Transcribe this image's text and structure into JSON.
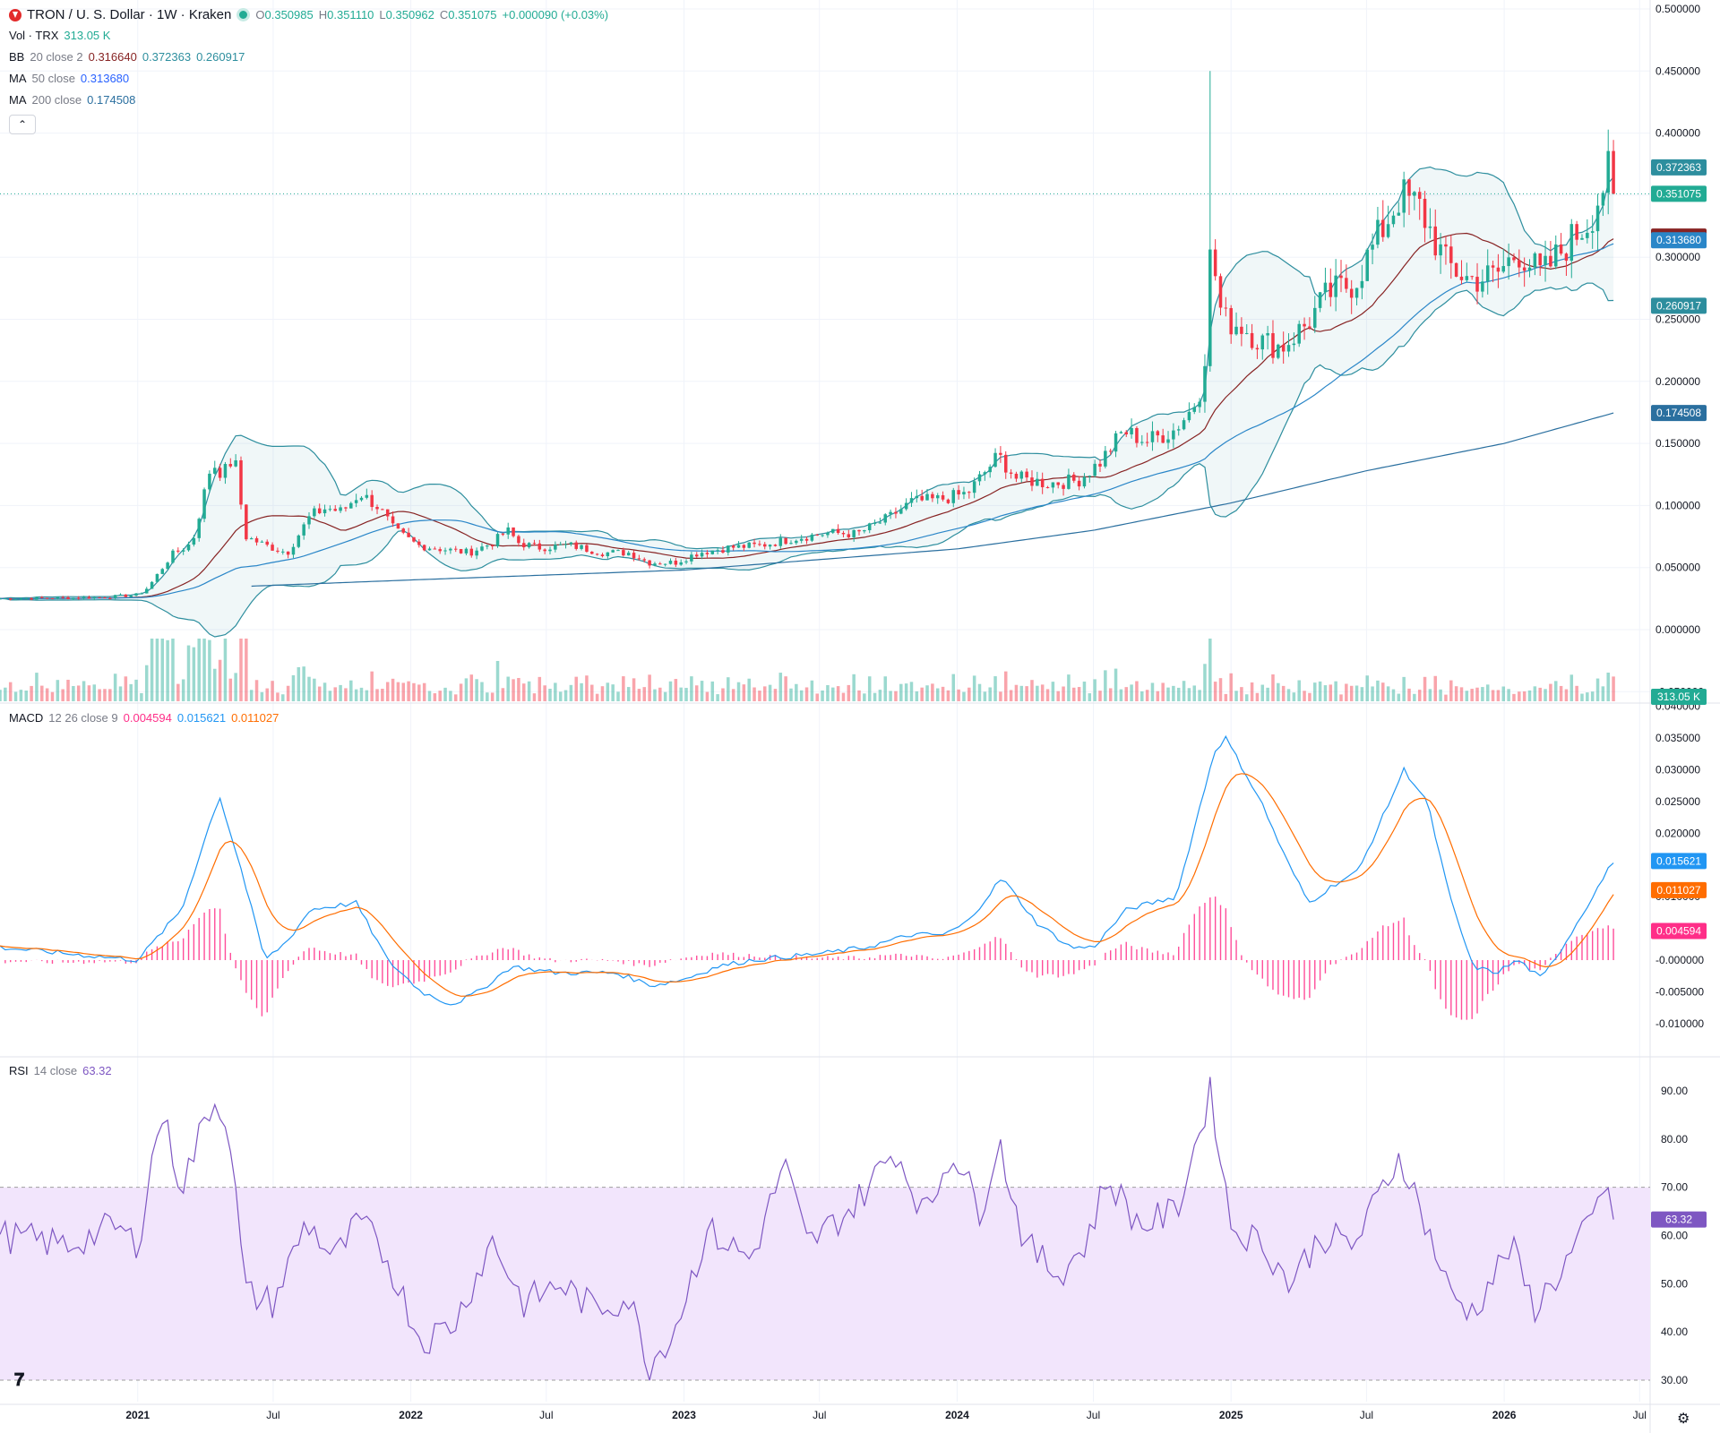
{
  "header": {
    "symbol": "TRON / U. S. Dollar · 1W · Kraken",
    "ohlc": [
      {
        "label": "O",
        "value": "0.350985"
      },
      {
        "label": "H",
        "value": "0.351110"
      },
      {
        "label": "L",
        "value": "0.350962"
      },
      {
        "label": "C",
        "value": "0.351075"
      }
    ],
    "change": "+0.000090 (+0.03%)"
  },
  "indicators": {
    "vol": {
      "name": "Vol · TRX",
      "value": "313.05 K"
    },
    "bb": {
      "name": "BB",
      "params": "20 close 2",
      "basis": "0.316640",
      "upper": "0.372363",
      "lower": "0.260917"
    },
    "ma50": {
      "name": "MA",
      "params": "50 close",
      "value": "0.313680"
    },
    "ma200": {
      "name": "MA",
      "params": "200 close",
      "value": "0.174508"
    },
    "macd": {
      "name": "MACD",
      "params": "12 26 close 9",
      "hist": "0.004594",
      "macd": "0.015621",
      "signal": "0.011027"
    },
    "rsi": {
      "name": "RSI",
      "params": "14 close",
      "value": "63.32"
    }
  },
  "colors": {
    "up": "#22ab94",
    "down": "#f23645",
    "bb_basis": "#872323",
    "bb_band": "#2d8e9e",
    "ma50": "#2962ff",
    "ma200": "#2a6f9f",
    "macd": "#2196f3",
    "signal": "#ff6d00",
    "hist": "#ff2e88",
    "rsi": "#7e57c2",
    "rsi_band": "#f2e5fc"
  },
  "price_axis": [
    "0.500000",
    "0.450000",
    "0.400000",
    "0.350000",
    "0.300000",
    "0.250000",
    "0.200000",
    "0.150000",
    "0.100000",
    "0.050000",
    "0.000000",
    "-0.050000"
  ],
  "price_labels": [
    {
      "value": "0.372363",
      "kind": "bb-upper"
    },
    {
      "value": "0.351075",
      "kind": "last"
    },
    {
      "value": "0.316640",
      "kind": "bb-basis"
    },
    {
      "value": "0.313680",
      "kind": "ma50"
    },
    {
      "value": "0.260917",
      "kind": "bb-lower"
    },
    {
      "value": "0.174508",
      "kind": "ma200"
    },
    {
      "value": "313.05 K",
      "kind": "volume"
    }
  ],
  "macd_axis": [
    "0.040000",
    "0.035000",
    "0.030000",
    "0.025000",
    "0.020000",
    "0.015000",
    "0.010000",
    "0.005000",
    "-0.000000",
    "-0.005000",
    "-0.010000"
  ],
  "macd_labels": [
    {
      "value": "0.015621",
      "kind": "macd"
    },
    {
      "value": "0.011027",
      "kind": "signal"
    },
    {
      "value": "0.004594",
      "kind": "hist"
    }
  ],
  "rsi_axis": [
    "90.00",
    "80.00",
    "70.00",
    "60.00",
    "50.00",
    "40.00",
    "30.00"
  ],
  "rsi_label": "63.32",
  "time_axis": [
    "2021",
    "Jul",
    "2022",
    "Jul",
    "2023",
    "Jul",
    "2024",
    "Jul",
    "2025",
    "Jul",
    "2026",
    "Jul"
  ],
  "chart_data": {
    "type": "candlestick",
    "title": "TRON / U. S. Dollar · 1W · Kraken",
    "x": {
      "start": "2020-07-01",
      "end": "2026-07-15",
      "interval": "1W"
    },
    "price_range": [
      -0.05,
      0.5
    ],
    "price_keypoints": [
      [
        "2020-07-01",
        0.025
      ],
      [
        "2020-11-15",
        0.026
      ],
      [
        "2021-01-01",
        0.028
      ],
      [
        "2021-01-15",
        0.034
      ],
      [
        "2021-02-15",
        0.06
      ],
      [
        "2021-03-15",
        0.07
      ],
      [
        "2021-04-10",
        0.135
      ],
      [
        "2021-04-25",
        0.125
      ],
      [
        "2021-05-10",
        0.14
      ],
      [
        "2021-05-25",
        0.075
      ],
      [
        "2021-06-20",
        0.068
      ],
      [
        "2021-07-20",
        0.062
      ],
      [
        "2021-08-20",
        0.092
      ],
      [
        "2021-09-10",
        0.098
      ],
      [
        "2021-10-01",
        0.095
      ],
      [
        "2021-10-25",
        0.11
      ],
      [
        "2021-11-20",
        0.098
      ],
      [
        "2021-12-10",
        0.08
      ],
      [
        "2022-01-10",
        0.068
      ],
      [
        "2022-02-10",
        0.065
      ],
      [
        "2022-03-20",
        0.062
      ],
      [
        "2022-04-20",
        0.07
      ],
      [
        "2022-05-10",
        0.08
      ],
      [
        "2022-05-25",
        0.07
      ],
      [
        "2022-06-20",
        0.066
      ],
      [
        "2022-08-01",
        0.068
      ],
      [
        "2022-09-15",
        0.062
      ],
      [
        "2022-10-20",
        0.062
      ],
      [
        "2022-11-15",
        0.054
      ],
      [
        "2022-12-20",
        0.054
      ],
      [
        "2023-01-20",
        0.062
      ],
      [
        "2023-03-01",
        0.066
      ],
      [
        "2023-04-15",
        0.068
      ],
      [
        "2023-06-01",
        0.074
      ],
      [
        "2023-07-15",
        0.078
      ],
      [
        "2023-08-20",
        0.077
      ],
      [
        "2023-10-01",
        0.09
      ],
      [
        "2023-11-01",
        0.103
      ],
      [
        "2023-12-10",
        0.105
      ],
      [
        "2024-01-15",
        0.11
      ],
      [
        "2024-02-25",
        0.14
      ],
      [
        "2024-03-20",
        0.122
      ],
      [
        "2024-05-01",
        0.118
      ],
      [
        "2024-06-10",
        0.12
      ],
      [
        "2024-07-10",
        0.135
      ],
      [
        "2024-08-10",
        0.16
      ],
      [
        "2024-09-10",
        0.152
      ],
      [
        "2024-10-15",
        0.16
      ],
      [
        "2024-11-10",
        0.178
      ],
      [
        "2024-11-25",
        0.2
      ],
      [
        "2024-12-05",
        0.31
      ],
      [
        "2024-12-20",
        0.25
      ],
      [
        "2025-01-15",
        0.245
      ],
      [
        "2025-02-10",
        0.232
      ],
      [
        "2025-03-10",
        0.228
      ],
      [
        "2025-04-10",
        0.245
      ],
      [
        "2025-05-10",
        0.27
      ],
      [
        "2025-06-15",
        0.28
      ],
      [
        "2025-07-20",
        0.32
      ],
      [
        "2025-08-15",
        0.35
      ],
      [
        "2025-09-10",
        0.34
      ],
      [
        "2025-10-15",
        0.295
      ],
      [
        "2025-11-15",
        0.282
      ],
      [
        "2025-12-20",
        0.285
      ],
      [
        "2026-01-20",
        0.305
      ],
      [
        "2026-02-20",
        0.285
      ],
      [
        "2026-03-25",
        0.31
      ],
      [
        "2026-04-25",
        0.33
      ],
      [
        "2026-05-20",
        0.368
      ],
      [
        "2026-05-27",
        0.351075
      ]
    ],
    "spike": {
      "date": "2024-12-05",
      "high": 0.45
    },
    "ma200_keypoints": [
      [
        "2021-06-01",
        0.035
      ],
      [
        "2022-01-01",
        0.04
      ],
      [
        "2023-01-01",
        0.048
      ],
      [
        "2024-01-01",
        0.065
      ],
      [
        "2024-07-01",
        0.08
      ],
      [
        "2025-01-01",
        0.102
      ],
      [
        "2025-07-01",
        0.128
      ],
      [
        "2026-01-01",
        0.15
      ],
      [
        "2026-05-27",
        0.174508
      ]
    ],
    "macd_range": [
      -0.012,
      0.04
    ],
    "macd_keypoints": [
      [
        "2020-07-01",
        0.002
      ],
      [
        "2021-01-01",
        0.0
      ],
      [
        "2021-03-01",
        0.008
      ],
      [
        "2021-04-20",
        0.026
      ],
      [
        "2021-05-20",
        0.014
      ],
      [
        "2021-06-20",
        0.0
      ],
      [
        "2021-07-20",
        0.003
      ],
      [
        "2021-08-20",
        0.008
      ],
      [
        "2021-10-20",
        0.009
      ],
      [
        "2021-12-01",
        0.0
      ],
      [
        "2022-01-15",
        -0.005
      ],
      [
        "2022-02-25",
        -0.007
      ],
      [
        "2022-04-01",
        -0.005
      ],
      [
        "2022-05-15",
        -0.001
      ],
      [
        "2022-07-15",
        -0.002
      ],
      [
        "2022-10-01",
        -0.002
      ],
      [
        "2022-11-20",
        -0.004
      ],
      [
        "2023-01-01",
        -0.003
      ],
      [
        "2023-02-15",
        -0.001
      ],
      [
        "2023-04-01",
        0.0
      ],
      [
        "2023-07-01",
        0.001
      ],
      [
        "2023-09-01",
        0.002
      ],
      [
        "2023-11-01",
        0.004
      ],
      [
        "2023-12-15",
        0.004
      ],
      [
        "2024-01-15",
        0.006
      ],
      [
        "2024-03-01",
        0.013
      ],
      [
        "2024-04-15",
        0.006
      ],
      [
        "2024-06-01",
        0.002
      ],
      [
        "2024-07-01",
        0.002
      ],
      [
        "2024-08-15",
        0.008
      ],
      [
        "2024-10-20",
        0.01
      ],
      [
        "2024-12-10",
        0.033
      ],
      [
        "2024-12-25",
        0.035
      ],
      [
        "2025-02-10",
        0.025
      ],
      [
        "2025-03-15",
        0.016
      ],
      [
        "2025-04-15",
        0.009
      ],
      [
        "2025-05-20",
        0.012
      ],
      [
        "2025-06-20",
        0.014
      ],
      [
        "2025-08-20",
        0.03
      ],
      [
        "2025-09-20",
        0.025
      ],
      [
        "2025-10-20",
        0.01
      ],
      [
        "2025-11-20",
        -0.001
      ],
      [
        "2025-12-20",
        -0.002
      ],
      [
        "2026-01-20",
        0.0
      ],
      [
        "2026-02-20",
        -0.003
      ],
      [
        "2026-03-25",
        0.003
      ],
      [
        "2026-05-27",
        0.015621
      ]
    ],
    "rsi_range": [
      28,
      92
    ],
    "rsi_keypoints": [
      [
        "2020-07-01",
        60
      ],
      [
        "2020-10-01",
        58
      ],
      [
        "2020-12-01",
        62
      ],
      [
        "2021-01-01",
        58
      ],
      [
        "2021-02-01",
        86
      ],
      [
        "2021-03-01",
        70
      ],
      [
        "2021-04-10",
        88
      ],
      [
        "2021-05-01",
        85
      ],
      [
        "2021-05-25",
        48
      ],
      [
        "2021-07-01",
        46
      ],
      [
        "2021-08-15",
        63
      ],
      [
        "2021-09-20",
        55
      ],
      [
        "2021-10-25",
        63
      ],
      [
        "2021-12-01",
        55
      ],
      [
        "2022-01-15",
        38
      ],
      [
        "2022-03-01",
        42
      ],
      [
        "2022-04-20",
        59
      ],
      [
        "2022-06-01",
        46
      ],
      [
        "2022-07-20",
        50
      ],
      [
        "2022-09-01",
        45
      ],
      [
        "2022-10-20",
        47
      ],
      [
        "2022-11-15",
        33
      ],
      [
        "2022-12-20",
        41
      ],
      [
        "2023-02-01",
        61
      ],
      [
        "2023-04-01",
        55
      ],
      [
        "2023-05-15",
        75
      ],
      [
        "2023-06-15",
        58
      ],
      [
        "2023-08-15",
        66
      ],
      [
        "2023-10-10",
        78
      ],
      [
        "2023-11-20",
        64
      ],
      [
        "2023-12-25",
        78
      ],
      [
        "2024-02-01",
        65
      ],
      [
        "2024-02-25",
        80
      ],
      [
        "2024-04-01",
        58
      ],
      [
        "2024-05-15",
        52
      ],
      [
        "2024-06-20",
        58
      ],
      [
        "2024-07-20",
        72
      ],
      [
        "2024-09-01",
        62
      ],
      [
        "2024-10-20",
        65
      ],
      [
        "2024-12-05",
        90
      ],
      [
        "2025-01-01",
        62
      ],
      [
        "2025-02-15",
        58
      ],
      [
        "2025-03-20",
        50
      ],
      [
        "2025-05-01",
        60
      ],
      [
        "2025-06-15",
        58
      ],
      [
        "2025-08-15",
        77
      ],
      [
        "2025-09-10",
        66
      ],
      [
        "2025-10-20",
        48
      ],
      [
        "2025-11-20",
        44
      ],
      [
        "2026-01-10",
        58
      ],
      [
        "2026-02-10",
        45
      ],
      [
        "2026-03-15",
        52
      ],
      [
        "2026-04-25",
        62
      ],
      [
        "2026-05-20",
        71
      ],
      [
        "2026-05-27",
        63.32
      ]
    ],
    "rsi_band": [
      30,
      70
    ]
  }
}
